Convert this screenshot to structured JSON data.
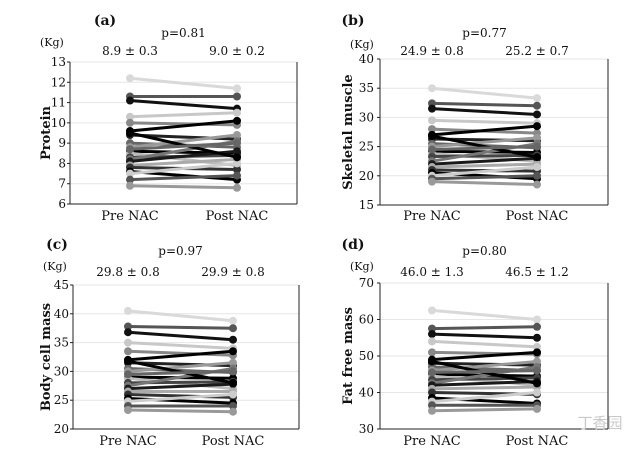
{
  "watermark": "丁香园",
  "chart_data": [
    {
      "type": "line",
      "panel": "(a)",
      "unit": "(Kg)",
      "ylabel": "Protein",
      "pvalue": "p=0.81",
      "categories": [
        "Pre NAC",
        "Post NAC"
      ],
      "group_labels": [
        "8.9 ± 0.3",
        "9.0 ± 0.2"
      ],
      "ylim": [
        6,
        13
      ],
      "yticks": [
        "6",
        "7",
        "8",
        "9",
        "10",
        "11",
        "12",
        "13"
      ],
      "series": [
        {
          "color": "#d9d9d9",
          "values": [
            12.2,
            11.7
          ]
        },
        {
          "color": "#555555",
          "values": [
            11.3,
            11.3
          ]
        },
        {
          "color": "#111111",
          "values": [
            11.1,
            10.7
          ]
        },
        {
          "color": "#c8c8c8",
          "values": [
            10.3,
            10.5
          ]
        },
        {
          "color": "#888888",
          "values": [
            10.0,
            9.9
          ]
        },
        {
          "color": "#000000",
          "values": [
            9.6,
            10.1
          ]
        },
        {
          "color": "#222222",
          "values": [
            9.4,
            9.2
          ]
        },
        {
          "color": "#666666",
          "values": [
            9.0,
            8.8
          ]
        },
        {
          "color": "#999999",
          "values": [
            8.8,
            9.4
          ]
        },
        {
          "color": "#000000",
          "values": [
            8.6,
            8.5
          ]
        },
        {
          "color": "#bbbbbb",
          "values": [
            8.5,
            7.9
          ]
        },
        {
          "color": "#444444",
          "values": [
            8.3,
            8.4
          ]
        },
        {
          "color": "#777777",
          "values": [
            8.2,
            9.1
          ]
        },
        {
          "color": "#1a1a1a",
          "values": [
            8.1,
            8.6
          ]
        },
        {
          "color": "#aaaaaa",
          "values": [
            7.9,
            8.2
          ]
        },
        {
          "color": "#333333",
          "values": [
            7.8,
            7.7
          ]
        },
        {
          "color": "#000000",
          "values": [
            7.6,
            7.2
          ]
        },
        {
          "color": "#cccccc",
          "values": [
            7.5,
            8.0
          ]
        },
        {
          "color": "#555555",
          "values": [
            7.2,
            7.4
          ]
        },
        {
          "color": "#999999",
          "values": [
            6.9,
            6.8
          ]
        },
        {
          "color": "#000000",
          "values": [
            9.5,
            8.3
          ]
        },
        {
          "color": "#666666",
          "values": [
            8.7,
            9.0
          ]
        }
      ]
    },
    {
      "type": "line",
      "panel": "(b)",
      "unit": "(Kg)",
      "ylabel": "Skeletal muscle",
      "pvalue": "p=0.77",
      "categories": [
        "Pre NAC",
        "Post NAC"
      ],
      "group_labels": [
        "24.9 ± 0.8",
        "25.2 ± 0.7"
      ],
      "ylim": [
        15,
        40
      ],
      "yticks": [
        "15",
        "20",
        "25",
        "30",
        "35",
        "40"
      ],
      "series": [
        {
          "color": "#d9d9d9",
          "values": [
            35.0,
            33.3
          ]
        },
        {
          "color": "#555555",
          "values": [
            32.4,
            32.0
          ]
        },
        {
          "color": "#111111",
          "values": [
            31.5,
            30.5
          ]
        },
        {
          "color": "#c8c8c8",
          "values": [
            29.5,
            29.0
          ]
        },
        {
          "color": "#888888",
          "values": [
            28.0,
            27.3
          ]
        },
        {
          "color": "#000000",
          "values": [
            27.0,
            28.5
          ]
        },
        {
          "color": "#222222",
          "values": [
            26.3,
            26.0
          ]
        },
        {
          "color": "#666666",
          "values": [
            25.5,
            24.8
          ]
        },
        {
          "color": "#999999",
          "values": [
            25.0,
            26.5
          ]
        },
        {
          "color": "#000000",
          "values": [
            24.2,
            24.0
          ]
        },
        {
          "color": "#bbbbbb",
          "values": [
            23.8,
            22.5
          ]
        },
        {
          "color": "#444444",
          "values": [
            23.3,
            23.5
          ]
        },
        {
          "color": "#777777",
          "values": [
            22.5,
            25.5
          ]
        },
        {
          "color": "#1a1a1a",
          "values": [
            22.0,
            23.0
          ]
        },
        {
          "color": "#aaaaaa",
          "values": [
            21.5,
            22.0
          ]
        },
        {
          "color": "#333333",
          "values": [
            21.0,
            20.8
          ]
        },
        {
          "color": "#000000",
          "values": [
            20.5,
            19.5
          ]
        },
        {
          "color": "#cccccc",
          "values": [
            20.0,
            21.5
          ]
        },
        {
          "color": "#555555",
          "values": [
            19.5,
            20.0
          ]
        },
        {
          "color": "#999999",
          "values": [
            19.0,
            18.5
          ]
        },
        {
          "color": "#000000",
          "values": [
            26.8,
            23.2
          ]
        },
        {
          "color": "#666666",
          "values": [
            24.5,
            25.0
          ]
        }
      ]
    },
    {
      "type": "line",
      "panel": "(c)",
      "unit": "(Kg)",
      "ylabel": "Body cell mass",
      "pvalue": "p=0.97",
      "categories": [
        "Pre NAC",
        "Post NAC"
      ],
      "group_labels": [
        "29.8 ± 0.8",
        "29.9 ± 0.8"
      ],
      "ylim": [
        20,
        45
      ],
      "yticks": [
        "20",
        "25",
        "30",
        "35",
        "40",
        "45"
      ],
      "series": [
        {
          "color": "#d9d9d9",
          "values": [
            40.5,
            38.8
          ]
        },
        {
          "color": "#555555",
          "values": [
            37.8,
            37.5
          ]
        },
        {
          "color": "#111111",
          "values": [
            36.8,
            35.5
          ]
        },
        {
          "color": "#c8c8c8",
          "values": [
            35.0,
            34.0
          ]
        },
        {
          "color": "#888888",
          "values": [
            33.5,
            32.8
          ]
        },
        {
          "color": "#000000",
          "values": [
            32.0,
            33.5
          ]
        },
        {
          "color": "#222222",
          "values": [
            31.5,
            31.0
          ]
        },
        {
          "color": "#666666",
          "values": [
            30.5,
            29.8
          ]
        },
        {
          "color": "#999999",
          "values": [
            30.0,
            31.5
          ]
        },
        {
          "color": "#000000",
          "values": [
            29.0,
            28.8
          ]
        },
        {
          "color": "#bbbbbb",
          "values": [
            28.8,
            27.0
          ]
        },
        {
          "color": "#444444",
          "values": [
            28.0,
            28.2
          ]
        },
        {
          "color": "#777777",
          "values": [
            27.5,
            30.5
          ]
        },
        {
          "color": "#1a1a1a",
          "values": [
            27.0,
            27.8
          ]
        },
        {
          "color": "#aaaaaa",
          "values": [
            26.5,
            26.5
          ]
        },
        {
          "color": "#333333",
          "values": [
            26.0,
            25.5
          ]
        },
        {
          "color": "#000000",
          "values": [
            25.3,
            24.5
          ]
        },
        {
          "color": "#cccccc",
          "values": [
            24.8,
            26.0
          ]
        },
        {
          "color": "#555555",
          "values": [
            24.0,
            24.0
          ]
        },
        {
          "color": "#999999",
          "values": [
            23.3,
            23.0
          ]
        },
        {
          "color": "#000000",
          "values": [
            31.8,
            28.0
          ]
        },
        {
          "color": "#666666",
          "values": [
            29.5,
            30.0
          ]
        }
      ]
    },
    {
      "type": "line",
      "panel": "(d)",
      "unit": "(Kg)",
      "ylabel": "Fat free mass",
      "pvalue": "p=0.80",
      "categories": [
        "Pre NAC",
        "Post NAC"
      ],
      "group_labels": [
        "46.0 ± 1.3",
        "46.5 ± 1.2"
      ],
      "ylim": [
        30,
        70
      ],
      "yticks": [
        "30",
        "40",
        "50",
        "60",
        "70"
      ],
      "series": [
        {
          "color": "#d9d9d9",
          "values": [
            62.5,
            60.0
          ]
        },
        {
          "color": "#555555",
          "values": [
            57.5,
            58.0
          ]
        },
        {
          "color": "#111111",
          "values": [
            56.0,
            55.0
          ]
        },
        {
          "color": "#c8c8c8",
          "values": [
            54.0,
            52.5
          ]
        },
        {
          "color": "#888888",
          "values": [
            51.0,
            50.5
          ]
        },
        {
          "color": "#000000",
          "values": [
            49.0,
            51.0
          ]
        },
        {
          "color": "#222222",
          "values": [
            48.0,
            47.5
          ]
        },
        {
          "color": "#666666",
          "values": [
            47.0,
            46.0
          ]
        },
        {
          "color": "#999999",
          "values": [
            46.0,
            48.5
          ]
        },
        {
          "color": "#000000",
          "values": [
            45.0,
            44.5
          ]
        },
        {
          "color": "#bbbbbb",
          "values": [
            44.5,
            42.0
          ]
        },
        {
          "color": "#444444",
          "values": [
            43.5,
            44.0
          ]
        },
        {
          "color": "#777777",
          "values": [
            42.5,
            47.0
          ]
        },
        {
          "color": "#1a1a1a",
          "values": [
            42.0,
            43.0
          ]
        },
        {
          "color": "#aaaaaa",
          "values": [
            41.0,
            41.5
          ]
        },
        {
          "color": "#333333",
          "values": [
            40.0,
            39.5
          ]
        },
        {
          "color": "#000000",
          "values": [
            38.5,
            37.0
          ]
        },
        {
          "color": "#cccccc",
          "values": [
            37.5,
            40.0
          ]
        },
        {
          "color": "#555555",
          "values": [
            36.5,
            36.5
          ]
        },
        {
          "color": "#999999",
          "values": [
            35.0,
            35.5
          ]
        },
        {
          "color": "#000000",
          "values": [
            48.5,
            42.5
          ]
        },
        {
          "color": "#666666",
          "values": [
            45.5,
            46.0
          ]
        }
      ]
    }
  ]
}
